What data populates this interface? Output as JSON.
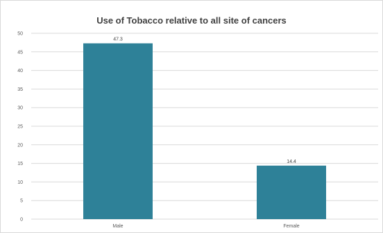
{
  "chart_data": {
    "type": "bar",
    "title": "Use of Tobacco relative to all site of cancers",
    "categories": [
      "Male",
      "Female"
    ],
    "values": [
      47.3,
      14.4
    ],
    "data_labels": [
      "47.3",
      "14.4"
    ],
    "ylim": [
      0,
      50
    ],
    "yticks": [
      "0",
      "5",
      "10",
      "15",
      "20",
      "25",
      "30",
      "35",
      "40",
      "45",
      "50"
    ],
    "grid": true,
    "bar_color": "#2e8198",
    "grid_color": "#d9d9d9"
  }
}
